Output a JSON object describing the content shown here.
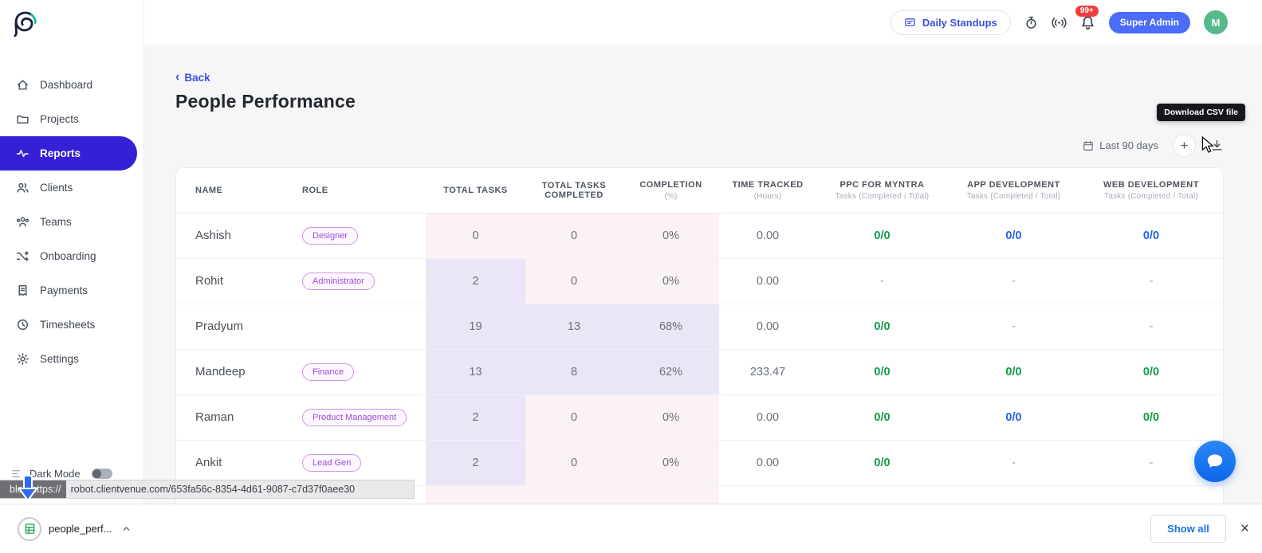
{
  "colors": {
    "accent": "#3620d6",
    "link": "#3c50e0",
    "green": "#139a4b",
    "blue": "#2563eb",
    "badge_red": "#f23d3d",
    "super_admin_blue": "#4a6cf8",
    "avatar_green": "#57b88c"
  },
  "header": {
    "daily_standups": "Daily Standups",
    "notification_count": "99+",
    "role_button": "Super Admin",
    "avatar_initial": "M"
  },
  "sidebar": {
    "items": [
      {
        "label": "Dashboard",
        "icon": "home-icon",
        "active": false
      },
      {
        "label": "Projects",
        "icon": "folder-icon",
        "active": false
      },
      {
        "label": "Reports",
        "icon": "activity-icon",
        "active": true
      },
      {
        "label": "Clients",
        "icon": "users-icon",
        "active": false
      },
      {
        "label": "Teams",
        "icon": "teams-icon",
        "active": false
      },
      {
        "label": "Onboarding",
        "icon": "shuffle-icon",
        "active": false
      },
      {
        "label": "Payments",
        "icon": "receipt-icon",
        "active": false
      },
      {
        "label": "Timesheets",
        "icon": "clock-icon",
        "active": false
      },
      {
        "label": "Settings",
        "icon": "gear-icon",
        "active": false
      }
    ],
    "dark_mode_label": "Dark Mode"
  },
  "page": {
    "back_label": "Back",
    "title": "People Performance",
    "date_range": "Last 90 days",
    "download_tooltip": "Download CSV file"
  },
  "table": {
    "columns": [
      {
        "label": "NAME",
        "sub": ""
      },
      {
        "label": "ROLE",
        "sub": ""
      },
      {
        "label": "TOTAL TASKS",
        "sub": ""
      },
      {
        "label": "TOTAL TASKS COMPLETED",
        "sub": ""
      },
      {
        "label": "COMPLETION",
        "sub": "(%)"
      },
      {
        "label": "TIME TRACKED",
        "sub": "(Hours)"
      },
      {
        "label": "PPC FOR MYNTRA",
        "sub": "Tasks (Completed / Total)"
      },
      {
        "label": "APP DEVELOPMENT",
        "sub": "Tasks (Completed / Total)"
      },
      {
        "label": "WEB DEVELOPMENT",
        "sub": "Tasks (Completed / Total)"
      }
    ],
    "rows": [
      {
        "name": "Ashish",
        "role": "Designer",
        "total_tasks": "0",
        "completed": "0",
        "completion": "0%",
        "time": "0.00",
        "projects": [
          {
            "text": "0/0",
            "color": "green"
          },
          {
            "text": "0/0",
            "color": "blue"
          },
          {
            "text": "0/0",
            "color": "blue"
          }
        ]
      },
      {
        "name": "Rohit",
        "role": "Administrator",
        "total_tasks": "2",
        "completed": "0",
        "completion": "0%",
        "time": "0.00",
        "projects": [
          {
            "text": "-",
            "color": "dash"
          },
          {
            "text": "-",
            "color": "dash"
          },
          {
            "text": "-",
            "color": "dash"
          }
        ]
      },
      {
        "name": "Pradyum",
        "role": "",
        "total_tasks": "19",
        "completed": "13",
        "completion": "68%",
        "time": "0.00",
        "projects": [
          {
            "text": "0/0",
            "color": "green"
          },
          {
            "text": "-",
            "color": "dash"
          },
          {
            "text": "-",
            "color": "dash"
          }
        ]
      },
      {
        "name": "Mandeep",
        "role": "Finance",
        "total_tasks": "13",
        "completed": "8",
        "completion": "62%",
        "time": "233.47",
        "projects": [
          {
            "text": "0/0",
            "color": "green"
          },
          {
            "text": "0/0",
            "color": "green"
          },
          {
            "text": "0/0",
            "color": "green"
          }
        ]
      },
      {
        "name": "Raman",
        "role": "Product Management",
        "total_tasks": "2",
        "completed": "0",
        "completion": "0%",
        "time": "0.00",
        "projects": [
          {
            "text": "0/0",
            "color": "green"
          },
          {
            "text": "0/0",
            "color": "blue"
          },
          {
            "text": "0/0",
            "color": "green"
          }
        ]
      },
      {
        "name": "Ankit",
        "role": "Lead Gen",
        "total_tasks": "2",
        "completed": "0",
        "completion": "0%",
        "time": "0.00",
        "projects": [
          {
            "text": "0/0",
            "color": "green"
          },
          {
            "text": "-",
            "color": "dash"
          },
          {
            "text": "-",
            "color": "dash"
          }
        ]
      }
    ]
  },
  "statusbar": {
    "url_prefix": "blob:https://",
    "url": "robot.clientvenue.com/653fa56c-8354-4d61-9087-c7d37f0aee30"
  },
  "downloads_bar": {
    "filename": "people_perf...",
    "show_all": "Show all"
  }
}
